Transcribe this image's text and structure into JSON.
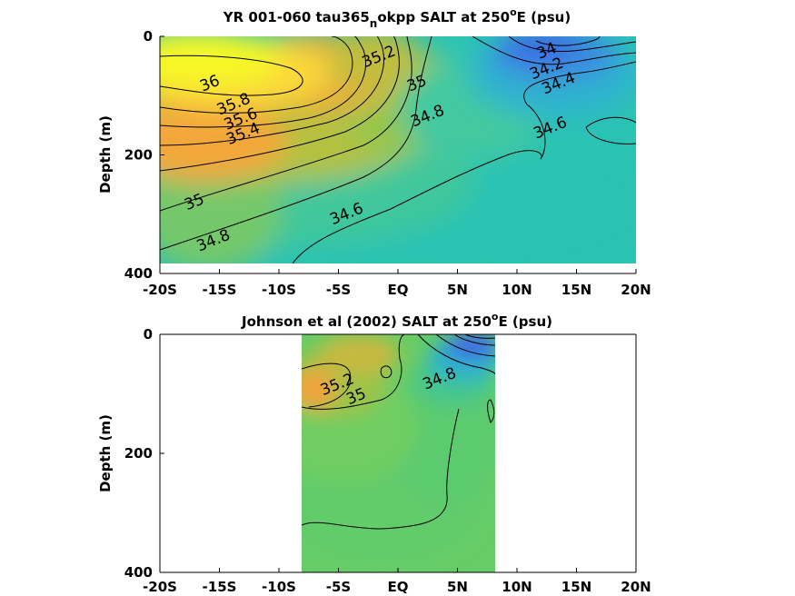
{
  "chart_data": [
    {
      "type": "heatmap",
      "title_main": "YR 001-060 tau365",
      "title_sub": "n",
      "title_rest": "okpp SALT at 250",
      "title_sup": "o",
      "title_end": "E (psu)",
      "ylabel": "Depth (m)",
      "x_ticks": [
        "-20S",
        "-15S",
        "-10S",
        "-5S",
        "EQ",
        "5N",
        "10N",
        "15N",
        "20N"
      ],
      "x_tick_values": [
        -20,
        -15,
        -10,
        -5,
        0,
        5,
        10,
        15,
        20
      ],
      "y_ticks": [
        "0",
        "200",
        "400"
      ],
      "y_tick_values": [
        0,
        200,
        400
      ],
      "xlim": [
        -20,
        20
      ],
      "ylim": [
        400,
        0
      ],
      "data_extent": {
        "x": [
          -20,
          20
        ],
        "y": [
          0,
          385
        ]
      },
      "contour_levels": [
        34,
        34.2,
        34.4,
        34.6,
        34.8,
        35,
        35.2,
        35.4,
        35.6,
        35.8,
        36
      ],
      "contour_labels": [
        {
          "text": "36",
          "x": -15.8,
          "y": 80
        },
        {
          "text": "35.8",
          "x": -13.8,
          "y": 115
        },
        {
          "text": "35.6",
          "x": -13.2,
          "y": 140
        },
        {
          "text": "35.4",
          "x": -13.0,
          "y": 165
        },
        {
          "text": "35.2",
          "x": -1.6,
          "y": 35
        },
        {
          "text": "35",
          "x": 1.6,
          "y": 80
        },
        {
          "text": "34.8",
          "x": 2.5,
          "y": 135
        },
        {
          "text": "34",
          "x": 12.5,
          "y": 25
        },
        {
          "text": "34.2",
          "x": 12.5,
          "y": 55
        },
        {
          "text": "34.4",
          "x": 13.5,
          "y": 80
        },
        {
          "text": "34.6",
          "x": 12.8,
          "y": 155
        },
        {
          "text": "34.6",
          "x": -4.3,
          "y": 300
        },
        {
          "text": "35",
          "x": -17.1,
          "y": 280
        },
        {
          "text": "34.8",
          "x": -15.5,
          "y": 345
        }
      ],
      "colorscale": [
        "#3c5ee8",
        "#2fa7d6",
        "#28c3b5",
        "#43cc85",
        "#7ccf58",
        "#b9c43a",
        "#f0a83a",
        "#fbd23c",
        "#f7f727"
      ]
    },
    {
      "type": "heatmap",
      "title_main": "Johnson et al (2002) SALT at 250",
      "title_sup": "o",
      "title_end": "E (psu)",
      "ylabel": "Depth (m)",
      "x_ticks": [
        "-20S",
        "-15S",
        "-10S",
        "-5S",
        "EQ",
        "5N",
        "10N",
        "15N",
        "20N"
      ],
      "x_tick_values": [
        -20,
        -15,
        -10,
        -5,
        0,
        5,
        10,
        15,
        20
      ],
      "y_ticks": [
        "0",
        "200",
        "400"
      ],
      "y_tick_values": [
        0,
        200,
        400
      ],
      "xlim": [
        -20,
        20
      ],
      "ylim": [
        400,
        0
      ],
      "data_extent": {
        "x": [
          -8,
          8.3
        ],
        "y": [
          0,
          400
        ]
      },
      "contour_labels": [
        {
          "text": "35.2",
          "x": -5.1,
          "y": 85
        },
        {
          "text": "35",
          "x": -3.5,
          "y": 105
        },
        {
          "text": "34.8",
          "x": 3.5,
          "y": 75
        }
      ],
      "colorscale": [
        "#3c5ee8",
        "#2fa7d6",
        "#28c3b5",
        "#43cc85",
        "#7ccf58",
        "#b9c43a",
        "#f0a83a",
        "#fbd23c",
        "#f7f727"
      ]
    }
  ]
}
